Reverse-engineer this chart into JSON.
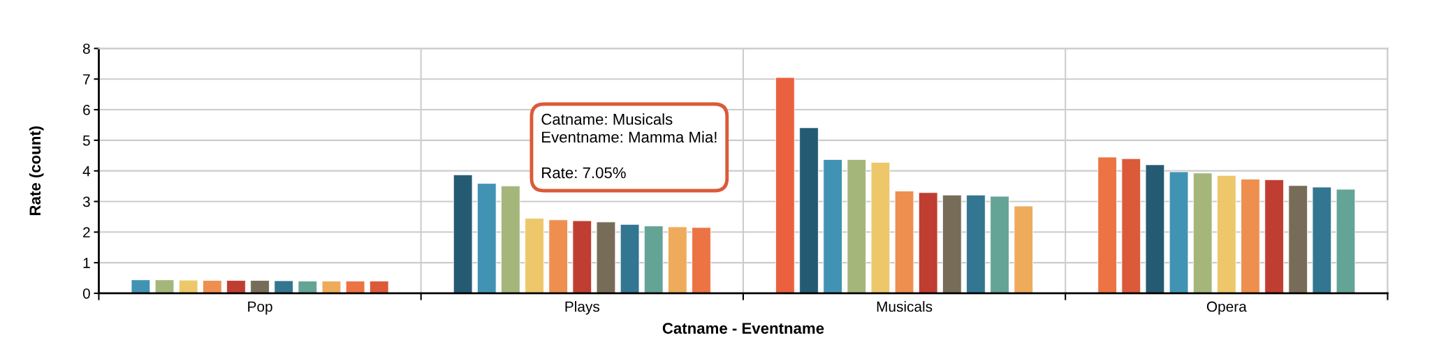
{
  "chart_data": {
    "type": "bar",
    "xlabel": "Catname - Eventname",
    "ylabel": "Rate (count)",
    "categories": [
      "Pop",
      "Plays",
      "Musicals",
      "Opera"
    ],
    "series": [
      {
        "colors": [
          "#4193b4",
          "#255a73",
          "#eb613f",
          "#ec7343"
        ],
        "values": [
          0.44,
          3.87,
          7.05,
          4.45
        ]
      },
      {
        "colors": [
          "#a5b67b",
          "#4193b4",
          "#255a73",
          "#db5a39"
        ],
        "values": [
          0.44,
          3.59,
          5.41,
          4.4
        ]
      },
      {
        "colors": [
          "#edc76a",
          "#a5b67b",
          "#4193b4",
          "#255a73"
        ],
        "values": [
          0.43,
          3.51,
          4.37,
          4.2
        ]
      },
      {
        "colors": [
          "#ef8f4f",
          "#edc76a",
          "#a5b67b",
          "#4193b4"
        ],
        "values": [
          0.42,
          2.45,
          4.37,
          3.97
        ]
      },
      {
        "colors": [
          "#bf3e31",
          "#ef8f4f",
          "#edc76a",
          "#a5b67b"
        ],
        "values": [
          0.42,
          2.4,
          4.28,
          3.93
        ]
      },
      {
        "colors": [
          "#766c58",
          "#bf3e31",
          "#ef8f4f",
          "#edc76a"
        ],
        "values": [
          0.42,
          2.37,
          3.34,
          3.85
        ]
      },
      {
        "colors": [
          "#337691",
          "#766c58",
          "#bf3e31",
          "#ef8f4f"
        ],
        "values": [
          0.41,
          2.33,
          3.29,
          3.73
        ]
      },
      {
        "colors": [
          "#64a496",
          "#337691",
          "#766c58",
          "#bf3e31"
        ],
        "values": [
          0.4,
          2.25,
          3.21,
          3.71
        ]
      },
      {
        "colors": [
          "#eeab5c",
          "#64a496",
          "#337691",
          "#766c58"
        ],
        "values": [
          0.4,
          2.2,
          3.21,
          3.52
        ]
      },
      {
        "colors": [
          "#ec7343",
          "#eeab5c",
          "#64a496",
          "#337691"
        ],
        "values": [
          0.4,
          2.17,
          3.17,
          3.47
        ]
      },
      {
        "colors": [
          "#db5a39",
          "#ec7343",
          "#eeab5c",
          "#64a496"
        ],
        "values": [
          0.4,
          2.15,
          2.85,
          3.4
        ]
      }
    ],
    "ylim": [
      0,
      8
    ],
    "yticks": [
      0,
      1,
      2,
      3,
      4,
      5,
      6,
      7,
      8
    ],
    "grid": true,
    "annotations": [
      "Catname: Musicals\nEventname: Mamma Mia!\n\nRate: 7.05%"
    ]
  }
}
